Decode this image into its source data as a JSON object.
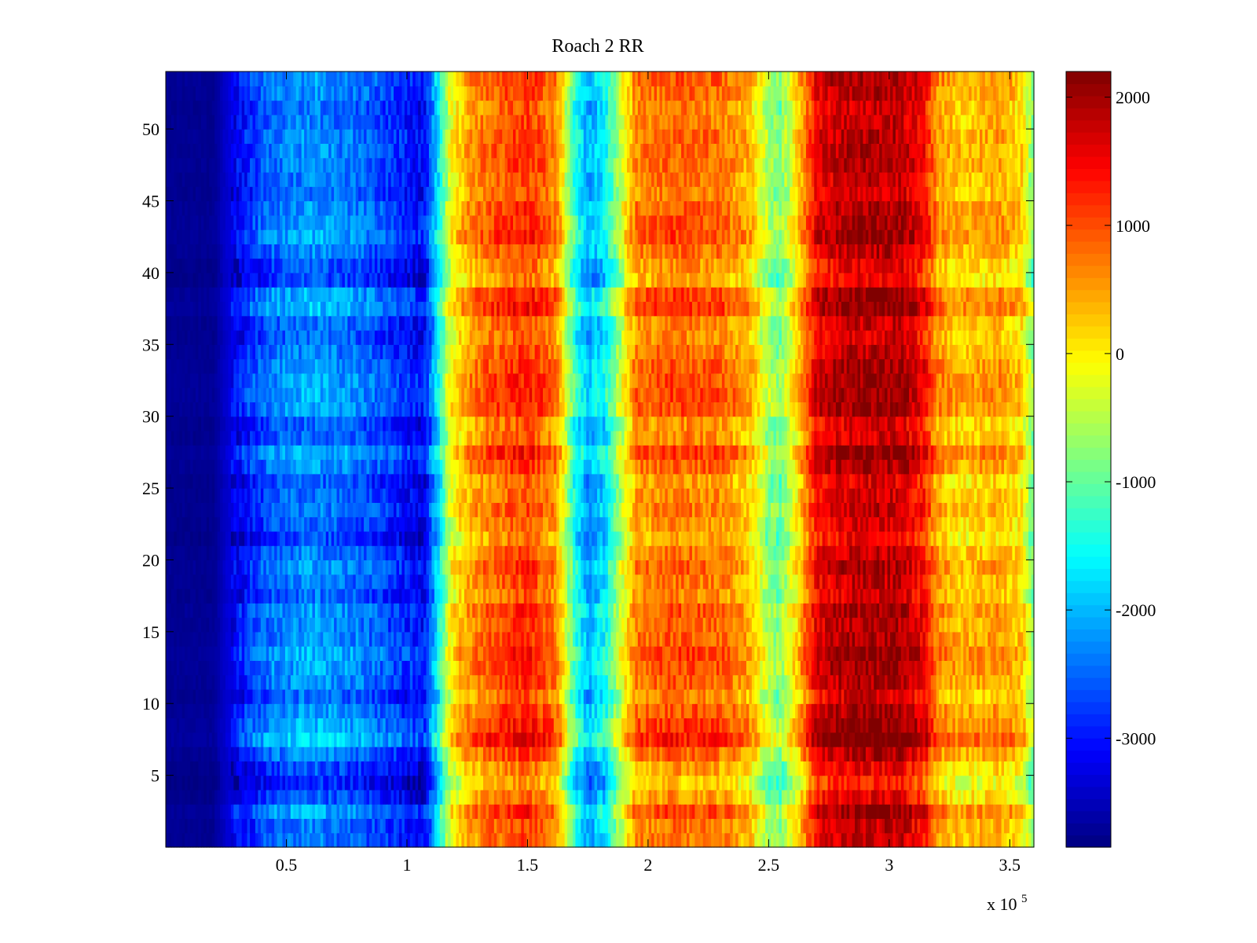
{
  "chart_data": {
    "type": "heatmap",
    "title": "Roach 2 RR",
    "xlabel": "",
    "ylabel": "",
    "x_exponent_label": {
      "base": "x 10",
      "exponent": "5"
    },
    "xlim": [
      0,
      3.6
    ],
    "ylim": [
      0,
      54
    ],
    "x_ticks": [
      0.5,
      1,
      1.5,
      2,
      2.5,
      3,
      3.5
    ],
    "x_tick_labels": [
      "0.5",
      "1",
      "1.5",
      "2",
      "2.5",
      "3",
      "3.5"
    ],
    "y_ticks": [
      5,
      10,
      15,
      20,
      25,
      30,
      35,
      40,
      45,
      50
    ],
    "y_tick_labels": [
      "5",
      "10",
      "15",
      "20",
      "25",
      "30",
      "35",
      "40",
      "45",
      "50"
    ],
    "colormap": "jet",
    "color_limits": [
      -3850,
      2200
    ],
    "colorbar_ticks": [
      2000,
      1000,
      0,
      -1000,
      -2000,
      -3000
    ],
    "colorbar_tick_labels": [
      "2000",
      "1000",
      "0",
      "-1000",
      "-2000",
      "-3000"
    ],
    "rows": 54,
    "column_profile": {
      "x": [
        0,
        0.2,
        0.25,
        0.35,
        0.45,
        0.6,
        0.8,
        1.0,
        1.07,
        1.12,
        1.18,
        1.25,
        1.35,
        1.5,
        1.62,
        1.7,
        1.75,
        1.82,
        1.88,
        1.95,
        2.1,
        2.3,
        2.42,
        2.5,
        2.55,
        2.62,
        2.7,
        2.85,
        3.05,
        3.15,
        3.2,
        3.3,
        3.45,
        3.55,
        3.6
      ],
      "values": [
        -3750,
        -3750,
        -3400,
        -2900,
        -2500,
        -2300,
        -2500,
        -3000,
        -3200,
        -2000,
        -200,
        400,
        800,
        1100,
        600,
        -1500,
        -2100,
        -1700,
        -600,
        600,
        800,
        700,
        300,
        -700,
        -900,
        100,
        1500,
        1800,
        1800,
        1300,
        500,
        200,
        400,
        100,
        -900
      ]
    },
    "row_offsets": [
      0,
      0,
      300,
      -200,
      -500,
      -250,
      100,
      550,
      350,
      200,
      -100,
      150,
      250,
      350,
      150,
      100,
      200,
      -100,
      0,
      150,
      0,
      -300,
      -150,
      0,
      -100,
      -200,
      150,
      350,
      -100,
      -150,
      250,
      300,
      250,
      200,
      50,
      -100,
      -50,
      400,
      300,
      -300,
      -200,
      50,
      300,
      200,
      150,
      -50,
      0,
      100,
      100,
      100,
      0,
      -50,
      100,
      200
    ]
  }
}
